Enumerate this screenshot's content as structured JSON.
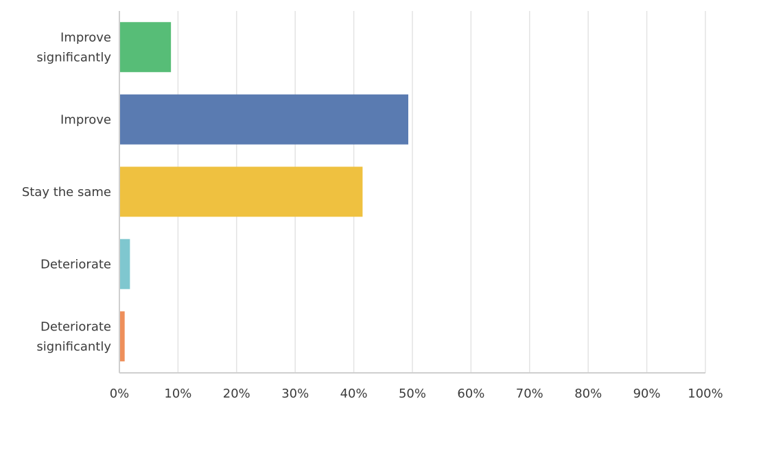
{
  "chart_data": {
    "type": "bar",
    "orientation": "horizontal",
    "categories": [
      [
        "Improve",
        "significantly"
      ],
      [
        "Improve"
      ],
      [
        "Stay the same"
      ],
      [
        "Deteriorate"
      ],
      [
        "Deteriorate",
        "significantly"
      ]
    ],
    "values": [
      8.8,
      49.3,
      41.5,
      1.8,
      0.9
    ],
    "colors": [
      "#57bd77",
      "#5a7bb1",
      "#efc140",
      "#7fc7cf",
      "#ee8f5b"
    ],
    "xlim": [
      0,
      100
    ],
    "xticks": [
      "0%",
      "10%",
      "20%",
      "30%",
      "40%",
      "50%",
      "60%",
      "70%",
      "80%",
      "90%",
      "100%"
    ],
    "grid": true,
    "title": "",
    "xlabel": "",
    "ylabel": ""
  }
}
